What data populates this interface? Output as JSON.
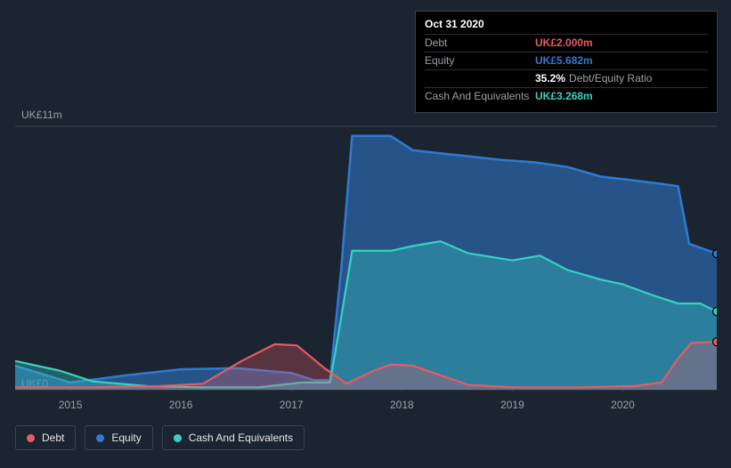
{
  "chart": {
    "type": "area",
    "background_color": "#1b2531",
    "plot_border_color": "#3a4250",
    "grid": false,
    "aspect_w": 788,
    "aspect_h": 320,
    "x": {
      "min": 2014.5,
      "max": 2020.85,
      "ticks": [
        2015,
        2016,
        2017,
        2018,
        2019,
        2020
      ],
      "tick_labels": [
        "2015",
        "2016",
        "2017",
        "2018",
        "2019",
        "2020"
      ],
      "label_fontsize": 12,
      "label_color": "#9aa0a6"
    },
    "y": {
      "min": 0,
      "max": 11,
      "ticks": [
        0,
        11
      ],
      "tick_labels": [
        "UK£0",
        "UK£11m"
      ],
      "label_fontsize": 12,
      "label_color": "#9aa0a6"
    },
    "series": [
      {
        "id": "equity",
        "label": "Equity",
        "stroke": "#2f7bd1",
        "fill": "#2f7bd1",
        "fill_opacity": 0.55,
        "line_width": 2.5,
        "marker_color": "#2f7bd1",
        "points": [
          [
            2014.5,
            1.0
          ],
          [
            2015.0,
            0.3
          ],
          [
            2015.5,
            0.6
          ],
          [
            2016.0,
            0.85
          ],
          [
            2016.5,
            0.9
          ],
          [
            2017.0,
            0.7
          ],
          [
            2017.2,
            0.4
          ],
          [
            2017.35,
            0.4
          ],
          [
            2017.45,
            5.0
          ],
          [
            2017.55,
            10.6
          ],
          [
            2017.9,
            10.6
          ],
          [
            2018.1,
            10.0
          ],
          [
            2018.5,
            9.8
          ],
          [
            2018.9,
            9.6
          ],
          [
            2019.2,
            9.5
          ],
          [
            2019.5,
            9.3
          ],
          [
            2019.8,
            8.9
          ],
          [
            2020.0,
            8.8
          ],
          [
            2020.35,
            8.6
          ],
          [
            2020.5,
            8.5
          ],
          [
            2020.6,
            6.1
          ],
          [
            2020.85,
            5.682
          ]
        ]
      },
      {
        "id": "cash",
        "label": "Cash And Equivalents",
        "stroke": "#38d1c1",
        "fill": "#38d1c1",
        "fill_opacity": 0.35,
        "line_width": 2.2,
        "marker_color": "#38d1c1",
        "points": [
          [
            2014.5,
            1.2
          ],
          [
            2014.9,
            0.8
          ],
          [
            2015.2,
            0.35
          ],
          [
            2015.7,
            0.15
          ],
          [
            2016.2,
            0.1
          ],
          [
            2016.7,
            0.1
          ],
          [
            2017.1,
            0.3
          ],
          [
            2017.35,
            0.3
          ],
          [
            2017.45,
            3.0
          ],
          [
            2017.55,
            5.8
          ],
          [
            2017.9,
            5.8
          ],
          [
            2018.1,
            6.0
          ],
          [
            2018.35,
            6.2
          ],
          [
            2018.6,
            5.7
          ],
          [
            2019.0,
            5.4
          ],
          [
            2019.25,
            5.6
          ],
          [
            2019.5,
            5.0
          ],
          [
            2019.8,
            4.6
          ],
          [
            2020.0,
            4.4
          ],
          [
            2020.3,
            3.9
          ],
          [
            2020.5,
            3.6
          ],
          [
            2020.7,
            3.6
          ],
          [
            2020.85,
            3.268
          ]
        ]
      },
      {
        "id": "debt",
        "label": "Debt",
        "stroke": "#e85b64",
        "fill": "#e85b64",
        "fill_opacity": 0.3,
        "line_width": 2.2,
        "marker_color": "#e85b64",
        "points": [
          [
            2014.5,
            0.1
          ],
          [
            2015.2,
            0.1
          ],
          [
            2015.8,
            0.15
          ],
          [
            2016.2,
            0.25
          ],
          [
            2016.55,
            1.2
          ],
          [
            2016.85,
            1.9
          ],
          [
            2017.05,
            1.85
          ],
          [
            2017.3,
            0.9
          ],
          [
            2017.5,
            0.25
          ],
          [
            2017.75,
            0.8
          ],
          [
            2017.9,
            1.05
          ],
          [
            2018.1,
            1.0
          ],
          [
            2018.35,
            0.6
          ],
          [
            2018.6,
            0.2
          ],
          [
            2019.0,
            0.1
          ],
          [
            2019.6,
            0.1
          ],
          [
            2020.1,
            0.15
          ],
          [
            2020.35,
            0.3
          ],
          [
            2020.5,
            1.3
          ],
          [
            2020.62,
            1.95
          ],
          [
            2020.85,
            2.0
          ]
        ]
      }
    ],
    "cursor_x": 2020.85,
    "end_markers": true
  },
  "tooltip": {
    "date": "Oct 31 2020",
    "rows": [
      {
        "k": "Debt",
        "v": "UK£2.000m",
        "color": "#e85b64"
      },
      {
        "k": "Equity",
        "v": "UK£5.682m",
        "color": "#2f7bd1"
      },
      {
        "k": "",
        "v": "35.2%",
        "color": "#ffffff",
        "suffix": "Debt/Equity Ratio"
      },
      {
        "k": "Cash And Equivalents",
        "v": "UK£3.268m",
        "color": "#38d1c1"
      }
    ]
  },
  "legend": {
    "items": [
      {
        "id": "debt",
        "label": "Debt",
        "color": "#e85b64"
      },
      {
        "id": "equity",
        "label": "Equity",
        "color": "#2f7bd1"
      },
      {
        "id": "cash",
        "label": "Cash And Equivalents",
        "color": "#38d1c1"
      }
    ],
    "border_color": "#3a4250",
    "text_color": "#e6e6e6",
    "fontsize": 12
  },
  "typography": {
    "font_family": "-apple-system, Helvetica, Arial, sans-serif"
  }
}
